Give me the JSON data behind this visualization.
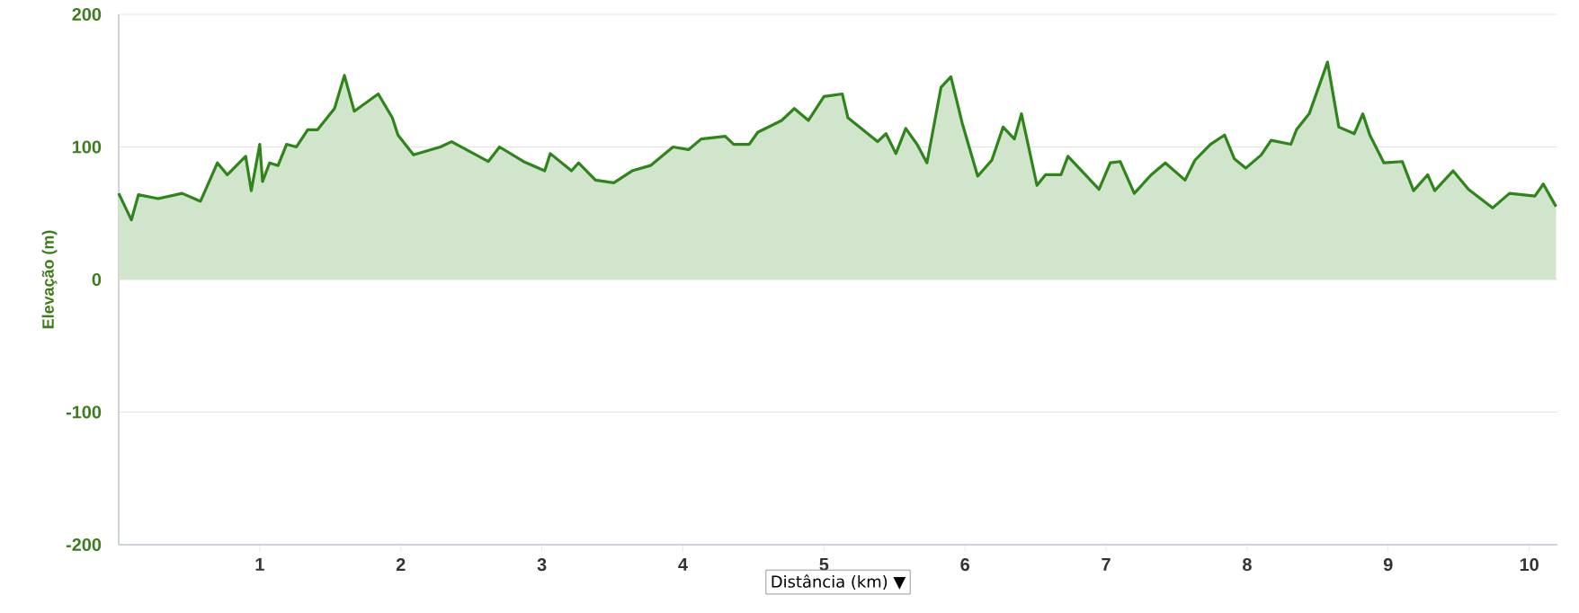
{
  "chart_data": {
    "type": "area",
    "xlabel": "Distância (km) ▼",
    "ylabel": "Elevação (m)",
    "xlim": [
      0,
      10.2
    ],
    "xticks": [
      1,
      2,
      3,
      4,
      5,
      6,
      7,
      8,
      9,
      10
    ],
    "ylim": [
      -200,
      200
    ],
    "yticks": [
      -200,
      -100,
      0,
      100,
      200
    ],
    "grid": "y",
    "series": [
      {
        "color": "#2e8519",
        "x": [
          0,
          0.09,
          0.14,
          0.28,
          0.45,
          0.58,
          0.7,
          0.77,
          0.9,
          0.94,
          1.0,
          1.02,
          1.07,
          1.13,
          1.19,
          1.26,
          1.34,
          1.41,
          1.53,
          1.6,
          1.67,
          1.84,
          1.94,
          1.98,
          2.09,
          2.28,
          2.36,
          2.62,
          2.7,
          2.87,
          3.02,
          3.06,
          3.21,
          3.26,
          3.38,
          3.51,
          3.64,
          3.77,
          3.93,
          4.04,
          4.13,
          4.3,
          4.36,
          4.47,
          4.53,
          4.7,
          4.79,
          4.89,
          5.0,
          5.13,
          5.17,
          5.38,
          5.44,
          5.51,
          5.58,
          5.66,
          5.73,
          5.83,
          5.9,
          5.98,
          6.09,
          6.19,
          6.27,
          6.35,
          6.4,
          6.51,
          6.57,
          6.68,
          6.73,
          6.95,
          7.03,
          7.1,
          7.2,
          7.32,
          7.42,
          7.56,
          7.63,
          7.74,
          7.84,
          7.91,
          7.99,
          8.1,
          8.17,
          8.31,
          8.35,
          8.44,
          8.57,
          8.65,
          8.76,
          8.82,
          8.87,
          8.97,
          9.1,
          9.18,
          9.28,
          9.33,
          9.46,
          9.57,
          9.74,
          9.86,
          10.04,
          10.1,
          10.19
        ],
        "values": [
          65,
          45,
          64,
          61,
          65,
          59,
          88,
          79,
          93,
          67,
          102,
          74,
          88,
          86,
          102,
          100,
          113,
          113,
          129,
          154,
          127,
          140,
          122,
          109,
          94,
          100,
          104,
          89,
          100,
          89,
          82,
          95,
          82,
          88,
          75,
          73,
          82,
          86,
          100,
          98,
          106,
          108,
          102,
          102,
          111,
          120,
          129,
          120,
          138,
          140,
          122,
          104,
          110,
          95,
          114,
          102,
          88,
          145,
          153,
          118,
          78,
          90,
          115,
          106,
          125,
          71,
          79,
          79,
          93,
          68,
          88,
          89,
          65,
          79,
          88,
          75,
          90,
          102,
          109,
          91,
          84,
          94,
          105,
          102,
          113,
          125,
          164,
          115,
          110,
          125,
          109,
          88,
          89,
          67,
          79,
          67,
          82,
          68,
          54,
          65,
          63,
          72,
          55
        ]
      }
    ]
  }
}
